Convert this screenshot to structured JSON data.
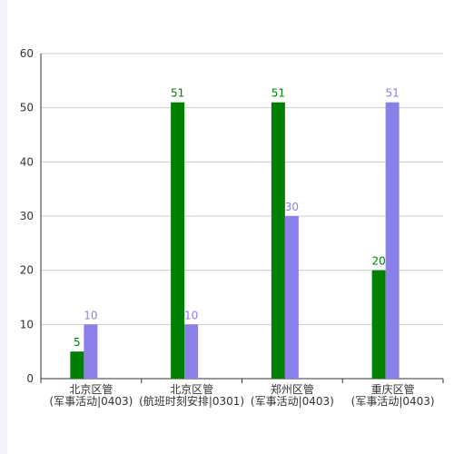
{
  "chart_data": {
    "type": "bar",
    "categories": [
      [
        "北京区管",
        "(军事活动|0403)"
      ],
      [
        "北京区管",
        "(航班时刻安排|0301)"
      ],
      [
        "郑州区管",
        "(军事活动|0403)"
      ],
      [
        "重庆区管",
        "(军事活动|0403)"
      ]
    ],
    "series": [
      {
        "color": "#008000",
        "values": [
          5,
          51,
          51,
          20
        ]
      },
      {
        "color": "#8b80ea",
        "values": [
          10,
          10,
          30,
          51
        ]
      }
    ],
    "ylim": [
      0,
      60
    ],
    "yticks": [
      0,
      10,
      20,
      30,
      40,
      50,
      60
    ],
    "grid": true
  }
}
